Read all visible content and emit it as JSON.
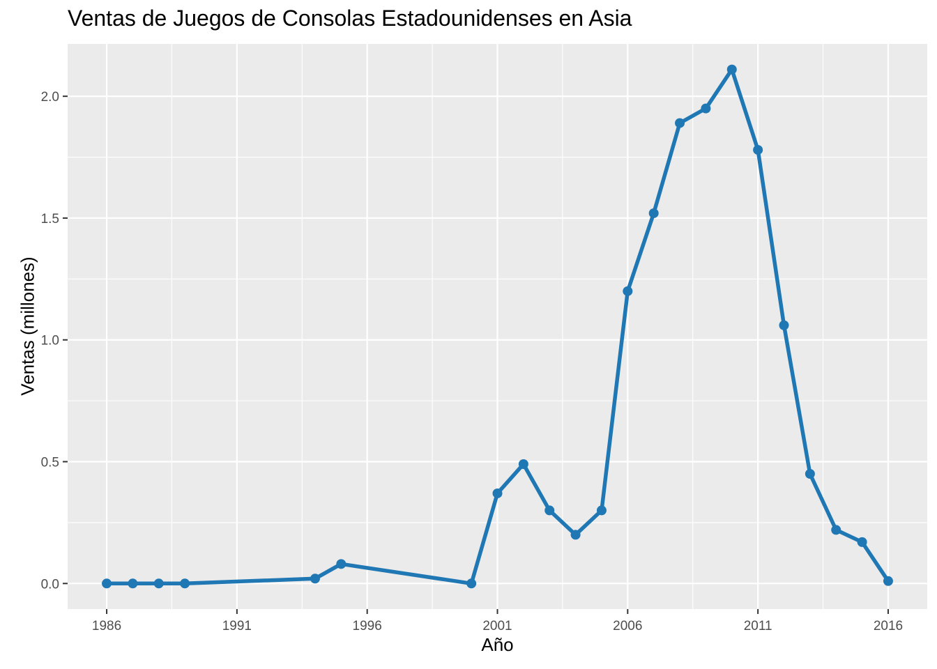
{
  "chart_data": {
    "type": "line",
    "title": "Ventas de Juegos de Consolas Estadounidenses en Asia",
    "xlabel": "Año",
    "ylabel": "Ventas (millones)",
    "x_ticks": [
      1986,
      1991,
      1996,
      2001,
      2006,
      2011,
      2016
    ],
    "y_ticks": [
      "0.0",
      "0.5",
      "1.0",
      "1.5",
      "2.0"
    ],
    "xlim": [
      1984.5,
      2017.5
    ],
    "ylim": [
      -0.105,
      2.215
    ],
    "grid": true,
    "series": [
      {
        "color": "#1f77b4",
        "x": [
          1986,
          1987,
          1988,
          1989,
          1994,
          1995,
          2000,
          2001,
          2002,
          2003,
          2004,
          2005,
          2006,
          2007,
          2008,
          2009,
          2010,
          2011,
          2012,
          2013,
          2014,
          2015,
          2016
        ],
        "values": [
          0.0,
          0.0,
          0.0,
          0.0,
          0.02,
          0.08,
          0.0,
          0.37,
          0.49,
          0.3,
          0.2,
          0.3,
          1.2,
          1.52,
          1.89,
          1.95,
          2.11,
          1.78,
          1.06,
          0.45,
          0.22,
          0.17,
          0.01
        ]
      }
    ]
  }
}
